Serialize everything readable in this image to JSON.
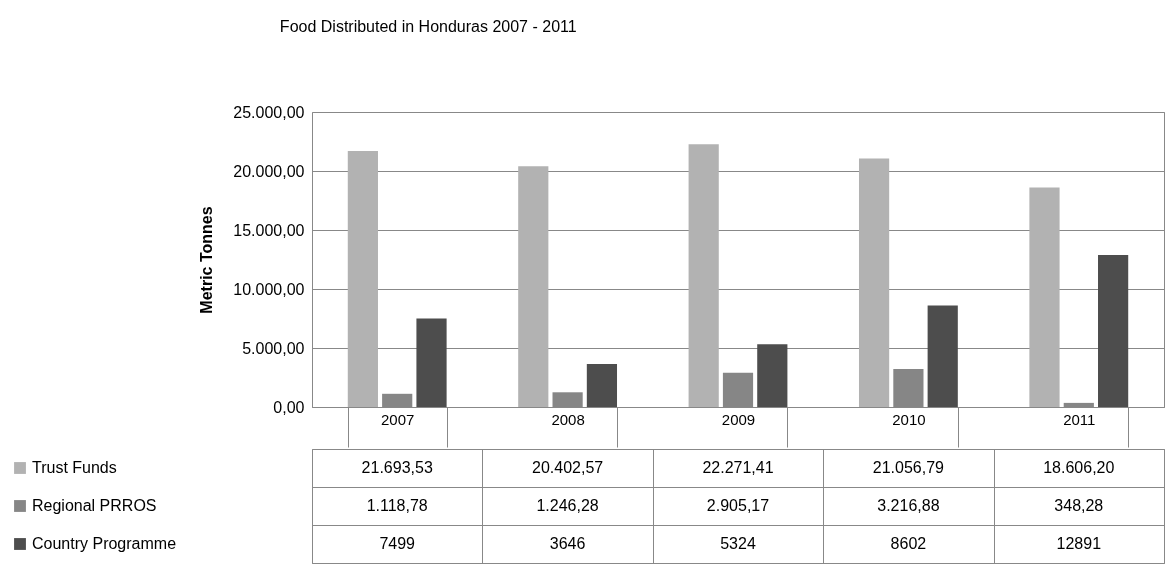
{
  "chart_data": {
    "type": "bar",
    "title": "Food Distributed in Honduras 2007 - 2011",
    "ylabel": "Metric Tonnes",
    "categories": [
      "2007",
      "2008",
      "2009",
      "2010",
      "2011"
    ],
    "series": [
      {
        "name": "Trust Funds",
        "color": "#b2b2b2",
        "values": [
          21693.53,
          20402.57,
          22271.41,
          21056.79,
          18606.2
        ],
        "value_labels": [
          "21.693,53",
          "20.402,57",
          "22.271,41",
          "21.056,79",
          "18.606,20"
        ]
      },
      {
        "name": "Regional PRROS",
        "color": "#868686",
        "values": [
          1118.78,
          1246.28,
          2905.17,
          3216.88,
          348.28
        ],
        "value_labels": [
          "1.118,78",
          "1.246,28",
          "2.905,17",
          "3.216,88",
          "348,28"
        ]
      },
      {
        "name": "Country Programme",
        "color": "#4d4d4d",
        "values": [
          7499,
          3646,
          5324,
          8602,
          12891
        ],
        "value_labels": [
          "7499",
          "3646",
          "5324",
          "8602",
          "12891"
        ]
      }
    ],
    "ylim": [
      0,
      25000
    ],
    "yticks": [
      {
        "value": 0,
        "label": "0,00"
      },
      {
        "value": 5000,
        "label": "5.000,00"
      },
      {
        "value": 10000,
        "label": "10.000,00"
      },
      {
        "value": 15000,
        "label": "15.000,00"
      },
      {
        "value": 20000,
        "label": "20.000,00"
      },
      {
        "value": 25000,
        "label": "25.000,00"
      }
    ],
    "grid": "y",
    "legend": "bottom left"
  }
}
